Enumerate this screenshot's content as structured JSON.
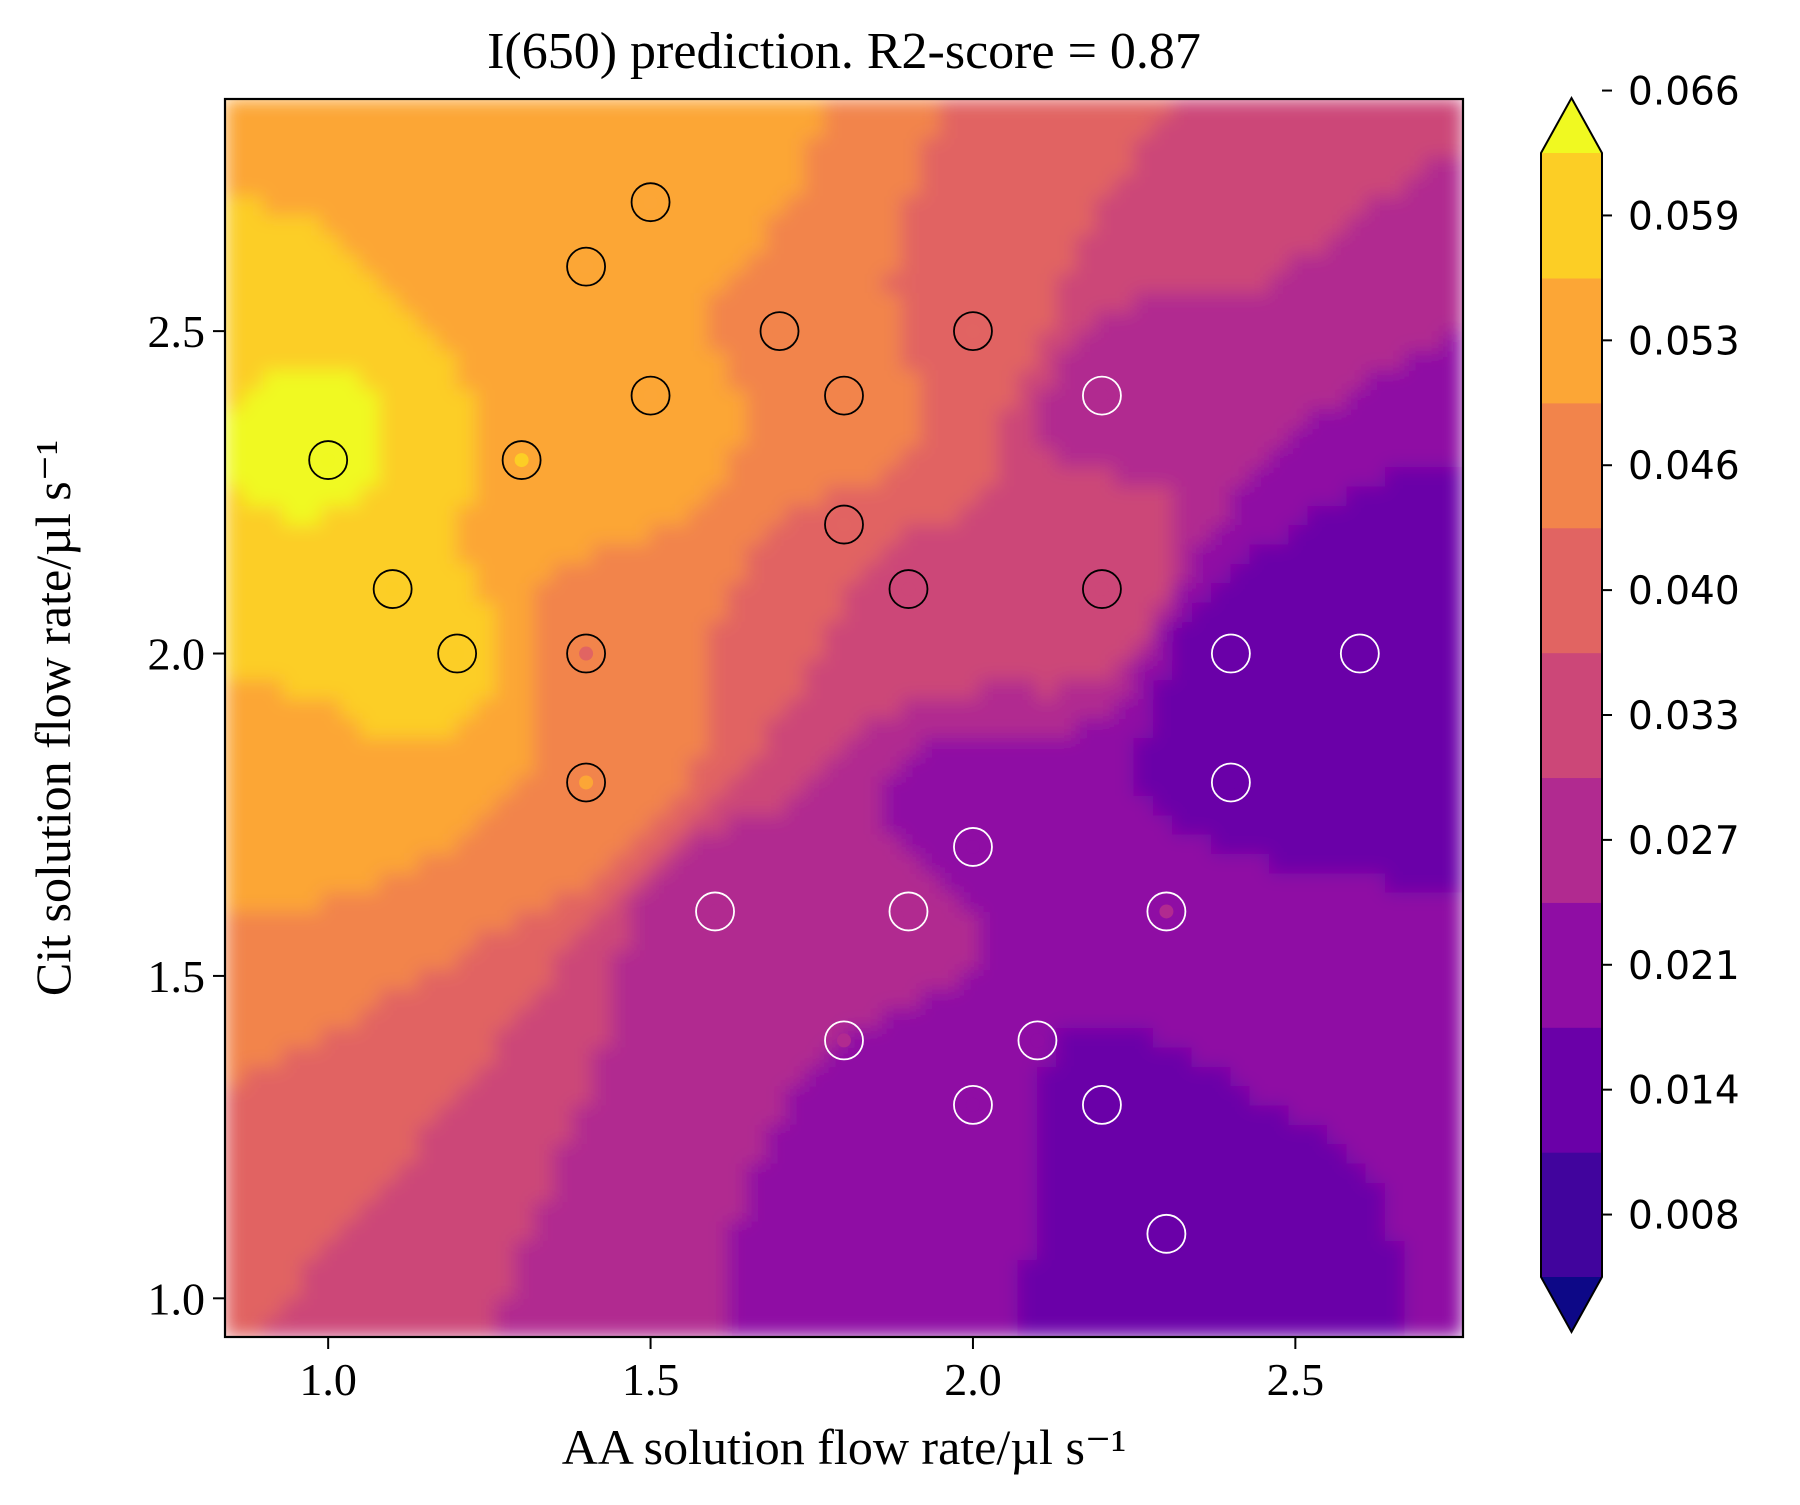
{
  "chart_data": {
    "type": "heatmap",
    "title": "I(650) prediction. R2-score = 0.87",
    "xlabel": "AA solution flow rate/µl s⁻¹",
    "ylabel": "Cit solution flow rate/µl s⁻¹",
    "xlim": [
      0.84,
      2.76
    ],
    "ylim": [
      0.94,
      2.86
    ],
    "x_ticks": [
      1.0,
      1.5,
      2.0,
      2.5
    ],
    "x_tick_labels": [
      "1.0",
      "1.5",
      "2.0",
      "2.5"
    ],
    "y_ticks": [
      1.0,
      1.5,
      2.0,
      2.5
    ],
    "y_tick_labels": [
      "1.0",
      "1.5",
      "2.0",
      "2.5"
    ],
    "colormap": "plasma",
    "colorbar": {
      "extend": "both",
      "ticks": [
        0.008,
        0.014,
        0.021,
        0.027,
        0.033,
        0.04,
        0.046,
        0.053,
        0.059,
        0.066
      ],
      "tick_labels": [
        "0.008",
        "0.014",
        "0.021",
        "0.027",
        "0.033",
        "0.040",
        "0.046",
        "0.053",
        "0.059",
        "0.066"
      ],
      "level_colors": [
        "#0d0887",
        "#41049d",
        "#6a00a8",
        "#8f0da4",
        "#b12a90",
        "#cc4778",
        "#e16462",
        "#f2844b",
        "#fca636",
        "#fcce25",
        "#f0f921"
      ]
    },
    "samples": [
      {
        "x": 1.0,
        "y": 2.3,
        "value": 0.063
      },
      {
        "x": 1.1,
        "y": 2.1,
        "value": 0.056
      },
      {
        "x": 1.2,
        "y": 2.0,
        "value": 0.058
      },
      {
        "x": 1.3,
        "y": 2.3,
        "value": 0.056
      },
      {
        "x": 1.4,
        "y": 2.6,
        "value": 0.052
      },
      {
        "x": 1.4,
        "y": 2.0,
        "value": 0.043
      },
      {
        "x": 1.4,
        "y": 1.8,
        "value": 0.049
      },
      {
        "x": 1.5,
        "y": 2.7,
        "value": 0.054
      },
      {
        "x": 1.5,
        "y": 2.4,
        "value": 0.054
      },
      {
        "x": 1.6,
        "y": 1.6,
        "value": 0.027
      },
      {
        "x": 1.7,
        "y": 2.5,
        "value": 0.047
      },
      {
        "x": 1.8,
        "y": 2.4,
        "value": 0.047
      },
      {
        "x": 1.8,
        "y": 2.2,
        "value": 0.043
      },
      {
        "x": 1.8,
        "y": 1.4,
        "value": 0.024
      },
      {
        "x": 1.9,
        "y": 2.1,
        "value": 0.032
      },
      {
        "x": 1.9,
        "y": 1.6,
        "value": 0.029
      },
      {
        "x": 2.0,
        "y": 2.5,
        "value": 0.04
      },
      {
        "x": 2.0,
        "y": 1.7,
        "value": 0.018
      },
      {
        "x": 2.0,
        "y": 1.3,
        "value": 0.02
      },
      {
        "x": 2.1,
        "y": 1.4,
        "value": 0.017
      },
      {
        "x": 2.2,
        "y": 2.4,
        "value": 0.028
      },
      {
        "x": 2.2,
        "y": 2.1,
        "value": 0.036
      },
      {
        "x": 2.2,
        "y": 1.3,
        "value": 0.015
      },
      {
        "x": 2.3,
        "y": 1.6,
        "value": 0.024
      },
      {
        "x": 2.3,
        "y": 1.1,
        "value": 0.015
      },
      {
        "x": 2.4,
        "y": 2.0,
        "value": 0.013
      },
      {
        "x": 2.4,
        "y": 1.8,
        "value": 0.014
      },
      {
        "x": 2.6,
        "y": 2.0,
        "value": 0.012
      }
    ]
  }
}
